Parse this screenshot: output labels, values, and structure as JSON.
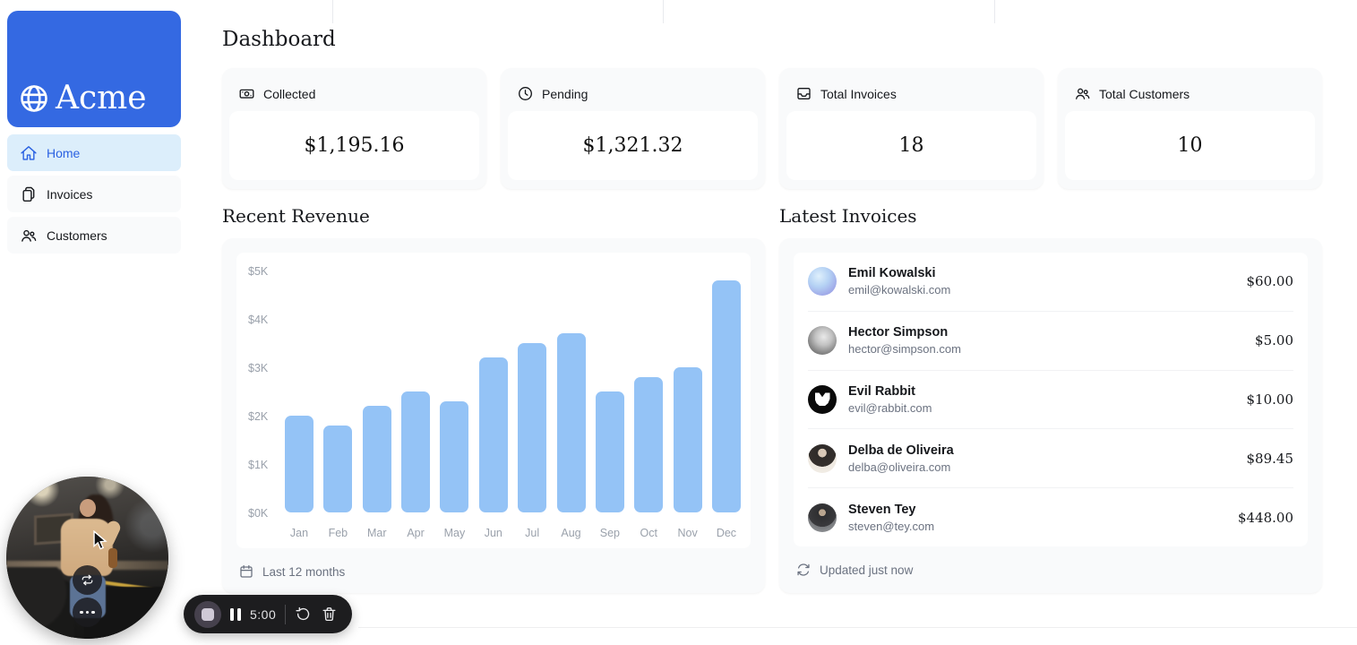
{
  "page_title": "Dashboard",
  "sidebar": {
    "logo_text": "Acme",
    "nav_items": [
      {
        "label": "Home",
        "icon": "home-icon",
        "active": true
      },
      {
        "label": "Invoices",
        "icon": "documents-icon",
        "active": false
      },
      {
        "label": "Customers",
        "icon": "users-icon",
        "active": false
      }
    ]
  },
  "stat_cards": [
    {
      "icon": "banknotes-icon",
      "label": "Collected",
      "value": "$1,195.16"
    },
    {
      "icon": "clock-icon",
      "label": "Pending",
      "value": "$1,321.32"
    },
    {
      "icon": "inbox-icon",
      "label": "Total Invoices",
      "value": "18"
    },
    {
      "icon": "user-group-icon",
      "label": "Total Customers",
      "value": "10"
    }
  ],
  "revenue_section": {
    "title": "Recent Revenue",
    "footer_label": "Last 12 months",
    "chart_data": {
      "type": "bar",
      "title": "Recent Revenue",
      "categories": [
        "Jan",
        "Feb",
        "Mar",
        "Apr",
        "May",
        "Jun",
        "Jul",
        "Aug",
        "Sep",
        "Oct",
        "Nov",
        "Dec"
      ],
      "values": [
        2000,
        1800,
        2200,
        2500,
        2300,
        3200,
        3500,
        3700,
        2500,
        2800,
        3000,
        4800
      ],
      "xlabel": "",
      "ylabel": "",
      "ylim": [
        0,
        5000
      ],
      "y_tick_labels": [
        "$0K",
        "$1K",
        "$2K",
        "$3K",
        "$4K",
        "$5K"
      ],
      "grid": false,
      "legend": "none",
      "bar_color": "#94c3f6"
    }
  },
  "invoices_section": {
    "title": "Latest Invoices",
    "rows": [
      {
        "name": "Emil Kowalski",
        "email": "emil@kowalski.com",
        "amount": "$60.00",
        "avatar": "gradient-sphere"
      },
      {
        "name": "Hector Simpson",
        "email": "hector@simpson.com",
        "amount": "$5.00",
        "avatar": "photo-gray"
      },
      {
        "name": "Evil Rabbit",
        "email": "evil@rabbit.com",
        "amount": "$10.00",
        "avatar": "rabbit-logo"
      },
      {
        "name": "Delba de Oliveira",
        "email": "delba@oliveira.com",
        "amount": "$89.45",
        "avatar": "photo-light"
      },
      {
        "name": "Steven Tey",
        "email": "steven@tey.com",
        "amount": "$448.00",
        "avatar": "photo-dark"
      }
    ],
    "footer_label": "Updated just now"
  },
  "recorder": {
    "timer": "5:00"
  },
  "colors": {
    "brand_blue": "#3469e2",
    "nav_active_bg": "#dceefb",
    "nav_active_text": "#2b62e2",
    "bar_blue": "#94c3f6",
    "card_bg": "#f9fafb",
    "muted_text": "#6b7280",
    "toolbar_bg": "#1d1d1f"
  }
}
